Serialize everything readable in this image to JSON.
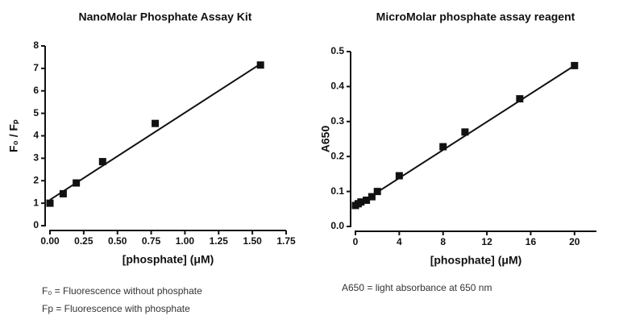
{
  "chart_data": [
    {
      "type": "scatter",
      "title": "NanoMolar Phosphate Assay Kit",
      "xlabel": "[phosphate] (μM)",
      "ylabel": "F₀ / Fₚ",
      "x": [
        0,
        0.098,
        0.195,
        0.39,
        0.78,
        1.56
      ],
      "values": [
        1.0,
        1.42,
        1.9,
        2.85,
        4.55,
        7.15
      ],
      "fit": {
        "x": [
          0,
          1.56
        ],
        "values": [
          1.15,
          7.2
        ]
      },
      "color": "#111111",
      "xlim": [
        0,
        1.75
      ],
      "xticks": [
        {
          "value": 0,
          "label": "0.00"
        },
        0.25,
        {
          "value": 0.5,
          "label": "0.50"
        },
        0.75,
        {
          "value": 1,
          "label": "1.00"
        },
        1.25,
        {
          "value": 1.5,
          "label": "1.50"
        },
        1.75
      ],
      "ylim": [
        0,
        8
      ],
      "yticks": [
        0,
        1,
        2,
        3,
        4,
        5,
        6,
        7,
        8
      ],
      "notes": [
        "F₀ = Fluorescence without phosphate",
        "Fp = Fluorescence with phosphate"
      ]
    },
    {
      "type": "scatter",
      "title": "MicroMolar phosphate assay reagent",
      "xlabel": "[phosphate] (μM)",
      "ylabel": "A650",
      "x": [
        0,
        0.25,
        0.5,
        1,
        1.5,
        2,
        4,
        8,
        10,
        15,
        20
      ],
      "values": [
        0.06,
        0.065,
        0.07,
        0.075,
        0.085,
        0.1,
        0.145,
        0.228,
        0.27,
        0.365,
        0.46
      ],
      "fit": {
        "x": [
          0,
          20
        ],
        "values": [
          0.058,
          0.46
        ]
      },
      "color": "#111111",
      "xlim": [
        0,
        22
      ],
      "xticks": [
        0,
        4,
        8,
        12,
        16,
        20
      ],
      "ylim": [
        0,
        0.5
      ],
      "yticks": [
        {
          "value": 0,
          "label": "0.0"
        },
        0.1,
        0.2,
        0.3,
        0.4,
        0.5
      ],
      "notes": [
        "A650 = light absorbance at 650 nm"
      ]
    }
  ]
}
